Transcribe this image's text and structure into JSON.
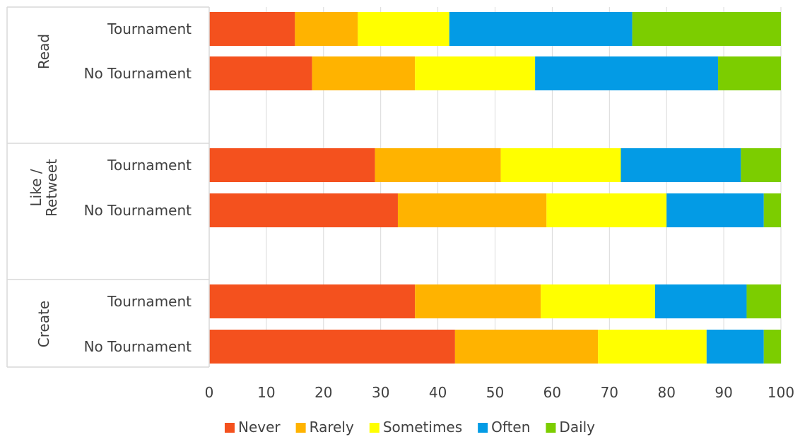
{
  "chart_data": {
    "type": "bar",
    "orientation": "horizontal",
    "stacked": true,
    "groups": [
      {
        "name": "Read",
        "label_lines": [
          "Read"
        ]
      },
      {
        "name": "Like / Retweet",
        "label_lines": [
          "Like /",
          "Retweet"
        ]
      },
      {
        "name": "Create",
        "label_lines": [
          "Create"
        ]
      }
    ],
    "categories": [
      "Read | Tournament",
      "Read | No Tournament",
      "Like / Retweet | Tournament",
      "Like / Retweet | No Tournament",
      "Create | Tournament",
      "Create | No Tournament"
    ],
    "category_labels": [
      "Tournament",
      "No Tournament",
      "Tournament",
      "No Tournament",
      "Tournament",
      "No Tournament"
    ],
    "series": [
      {
        "name": "Never",
        "color": "#F4511E",
        "values": [
          15,
          18,
          29,
          33,
          36,
          43
        ]
      },
      {
        "name": "Rarely",
        "color": "#FFB300",
        "values": [
          11,
          18,
          22,
          26,
          22,
          25
        ]
      },
      {
        "name": "Sometimes",
        "color": "#FFFF00",
        "values": [
          16,
          21,
          21,
          21,
          20,
          19
        ]
      },
      {
        "name": "Often",
        "color": "#039BE5",
        "values": [
          32,
          32,
          21,
          17,
          16,
          10
        ]
      },
      {
        "name": "Daily",
        "color": "#7CCD00",
        "values": [
          26,
          11,
          7,
          3,
          6,
          3
        ]
      }
    ],
    "x_ticks": [
      "0",
      "10",
      "20",
      "30",
      "40",
      "50",
      "60",
      "70",
      "80",
      "90",
      "100"
    ],
    "xlim": [
      0,
      100
    ],
    "grid": true,
    "legend_position": "bottom",
    "title": "",
    "xlabel": "",
    "ylabel": ""
  }
}
